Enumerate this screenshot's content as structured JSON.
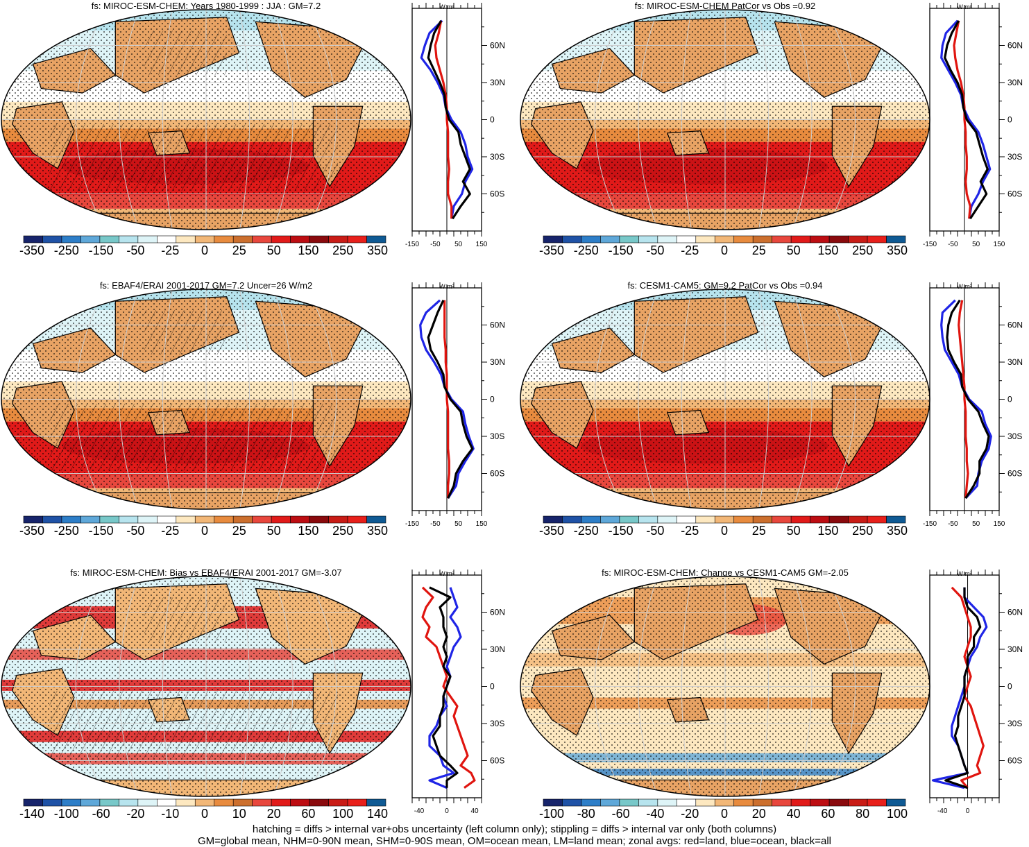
{
  "footnotes": [
    "hatching = diffs > internal var+obs uncertainty (left column only); stippling = diffs > internal var only (both columns)",
    "GM=global mean, NHM=0-90N mean, SHM=0-90S mean, OM=ocean mean, LM=land mean; zonal avgs: red=land, blue=ocean, black=all"
  ],
  "colors": {
    "land_line": "#e0150f",
    "ocean_line": "#1f25e6",
    "all_line": "#000000"
  },
  "profile_units": "W m²",
  "chart_data": [
    {
      "type": "heatmap",
      "title": "fs: MIROC-ESM-CHEM: Years 1980-1999 : JJA : GM=7.2",
      "map": "climatology",
      "colorbar": {
        "labels": [
          "-350",
          "-250",
          "-150",
          "-50",
          "-25",
          "0",
          "25",
          "50",
          "150",
          "250",
          "350"
        ]
      },
      "profile": {
        "x_ticks": [
          "-150",
          "-50",
          "50",
          "150"
        ],
        "xlim": [
          -150,
          150
        ],
        "y_ticks": [
          "60N",
          "30N",
          "0",
          "30S",
          "60S"
        ],
        "lat": [
          80,
          70,
          60,
          50,
          40,
          30,
          20,
          10,
          0,
          -10,
          -20,
          -30,
          -40,
          -50,
          -60,
          -70,
          -80
        ],
        "series": [
          {
            "name": "land",
            "values": [
              -25,
              -35,
              -50,
              -45,
              -30,
              -15,
              -5,
              0,
              0,
              5,
              5,
              5,
              10,
              5,
              5,
              20,
              20
            ]
          },
          {
            "name": "ocean",
            "values": [
              -20,
              -75,
              -95,
              -110,
              -70,
              -40,
              -15,
              -5,
              20,
              60,
              80,
              90,
              110,
              80,
              65,
              30,
              20
            ]
          },
          {
            "name": "all",
            "values": [
              -25,
              -55,
              -70,
              -80,
              -55,
              -30,
              -10,
              -5,
              10,
              50,
              60,
              80,
              100,
              70,
              100,
              60,
              25
            ]
          }
        ]
      }
    },
    {
      "type": "heatmap",
      "title": "fs: MIROC-ESM-CHEM PatCor vs Obs =0.92",
      "map": "climatology",
      "colorbar": {
        "labels": [
          "-350",
          "-250",
          "-150",
          "-50",
          "-25",
          "0",
          "25",
          "50",
          "150",
          "250",
          "350"
        ]
      },
      "profile": {
        "x_ticks": [
          "-150",
          "-50",
          "50",
          "150"
        ],
        "xlim": [
          -150,
          150
        ],
        "y_ticks": [
          "60N",
          "30N",
          "0",
          "30S",
          "60S"
        ],
        "lat": [
          80,
          70,
          60,
          50,
          40,
          30,
          20,
          10,
          0,
          -10,
          -20,
          -30,
          -40,
          -50,
          -60,
          -70,
          -80
        ],
        "series": [
          {
            "name": "land",
            "values": [
              -25,
              -35,
              -45,
              -40,
              -30,
              -15,
              -5,
              0,
              0,
              5,
              5,
              10,
              10,
              5,
              10,
              25,
              20
            ]
          },
          {
            "name": "ocean",
            "values": [
              -30,
              -80,
              -95,
              -100,
              -70,
              -40,
              -15,
              -5,
              20,
              60,
              80,
              95,
              110,
              80,
              60,
              30,
              20
            ]
          },
          {
            "name": "all",
            "values": [
              -25,
              -55,
              -75,
              -85,
              -60,
              -30,
              -10,
              -5,
              10,
              50,
              65,
              80,
              100,
              70,
              95,
              60,
              25
            ]
          }
        ]
      }
    },
    {
      "type": "heatmap",
      "title": "fs: EBAF4/ERAI 2001-2017 GM=7.2 Uncer=26 W/m2",
      "map": "climatology",
      "colorbar": {
        "labels": [
          "-350",
          "-250",
          "-150",
          "-50",
          "-25",
          "0",
          "25",
          "50",
          "150",
          "250",
          "350"
        ]
      },
      "profile": {
        "x_ticks": [
          "-150",
          "-50",
          "50",
          "150"
        ],
        "xlim": [
          -150,
          150
        ],
        "y_ticks": [
          "60N",
          "30N",
          "0",
          "30S",
          "60S"
        ],
        "lat": [
          80,
          70,
          60,
          50,
          40,
          30,
          20,
          10,
          0,
          -10,
          -20,
          -30,
          -40,
          -50,
          -60,
          -70,
          -80
        ],
        "series": [
          {
            "name": "land",
            "values": [
              -10,
              -10,
              -10,
              -10,
              -5,
              -5,
              0,
              0,
              0,
              5,
              5,
              5,
              5,
              10,
              10,
              5,
              5
            ]
          },
          {
            "name": "ocean",
            "values": [
              -30,
              -90,
              -115,
              -110,
              -90,
              -55,
              -25,
              -10,
              20,
              70,
              80,
              95,
              115,
              80,
              50,
              40,
              5
            ]
          },
          {
            "name": "all",
            "values": [
              -15,
              -40,
              -60,
              -80,
              -70,
              -40,
              -15,
              -10,
              15,
              60,
              70,
              85,
              110,
              70,
              40,
              30,
              5
            ]
          }
        ]
      }
    },
    {
      "type": "heatmap",
      "title": "fs: CESM1-CAM5: GM=9.2 PatCor vs Obs =0.94",
      "map": "climatology",
      "colorbar": {
        "labels": [
          "-350",
          "-250",
          "-150",
          "-50",
          "-25",
          "0",
          "25",
          "50",
          "150",
          "250",
          "350"
        ]
      },
      "profile": {
        "x_ticks": [
          "-150",
          "-50",
          "50",
          "150"
        ],
        "xlim": [
          -150,
          150
        ],
        "y_ticks": [
          "60N",
          "30N",
          "0",
          "30S",
          "60S"
        ],
        "lat": [
          80,
          70,
          60,
          50,
          40,
          30,
          20,
          10,
          0,
          -10,
          -20,
          -30,
          -40,
          -50,
          -60,
          -70,
          -80
        ],
        "series": [
          {
            "name": "land",
            "values": [
              -10,
              -20,
              -25,
              -20,
              -15,
              -10,
              -5,
              0,
              0,
              5,
              5,
              5,
              10,
              10,
              15,
              10,
              5
            ]
          },
          {
            "name": "ocean",
            "values": [
              -40,
              -95,
              -100,
              -95,
              -85,
              -55,
              -25,
              -10,
              20,
              75,
              90,
              115,
              105,
              75,
              60,
              55,
              5
            ]
          },
          {
            "name": "all",
            "values": [
              -20,
              -55,
              -70,
              -75,
              -70,
              -45,
              -15,
              -10,
              15,
              60,
              80,
              105,
              95,
              65,
              65,
              40,
              5
            ]
          }
        ]
      }
    },
    {
      "type": "heatmap",
      "title": "fs: MIROC-ESM-CHEM: Bias vs EBAF4/ERAI 2001-2017 GM=-3.07",
      "map": "bias",
      "colorbar": {
        "labels": [
          "-140",
          "-100",
          "-60",
          "-20",
          "-10",
          "0",
          "10",
          "20",
          "60",
          "100",
          "140"
        ]
      },
      "profile": {
        "x_ticks": [
          "-40",
          "0",
          "40"
        ],
        "xlim": [
          -50,
          50
        ],
        "y_ticks": [
          "60N",
          "30N",
          "0",
          "30S",
          "60S"
        ],
        "lat": [
          80,
          72,
          64,
          56,
          48,
          40,
          32,
          24,
          16,
          8,
          0,
          -8,
          -16,
          -24,
          -32,
          -40,
          -48,
          -56,
          -64,
          -70,
          -76,
          -82
        ],
        "series": [
          {
            "name": "land",
            "values": [
              -35,
              -20,
              -30,
              -35,
              -25,
              -30,
              -15,
              -10,
              -5,
              0,
              -5,
              5,
              15,
              10,
              15,
              20,
              25,
              30,
              20,
              35,
              40,
              25
            ]
          },
          {
            "name": "ocean",
            "values": [
              5,
              10,
              15,
              5,
              15,
              20,
              10,
              5,
              0,
              5,
              0,
              -5,
              0,
              -10,
              -15,
              -25,
              -25,
              -10,
              -5,
              10,
              -25,
              0
            ]
          },
          {
            "name": "all",
            "values": [
              -25,
              5,
              -10,
              -5,
              -5,
              0,
              -5,
              0,
              -5,
              5,
              0,
              -5,
              -5,
              -10,
              -10,
              -20,
              -15,
              -10,
              5,
              15,
              0,
              0
            ]
          }
        ]
      }
    },
    {
      "type": "heatmap",
      "title": "fs: MIROC-ESM-CHEM: Change vs CESM1-CAM5 GM=-2.05",
      "map": "change",
      "colorbar": {
        "labels": [
          "-100",
          "-80",
          "-60",
          "-40",
          "-20",
          "0",
          "20",
          "40",
          "60",
          "80",
          "100"
        ]
      },
      "profile": {
        "x_ticks": [
          "-40",
          "0"
        ],
        "xlim": [
          -60,
          50
        ],
        "y_ticks": [
          "60N",
          "30N",
          "0",
          "30S",
          "60S"
        ],
        "lat": [
          80,
          72,
          64,
          56,
          48,
          40,
          32,
          24,
          16,
          8,
          0,
          -8,
          -16,
          -24,
          -32,
          -40,
          -48,
          -56,
          -64,
          -70,
          -76,
          -82
        ],
        "series": [
          {
            "name": "land",
            "values": [
              -25,
              -10,
              -5,
              0,
              5,
              5,
              0,
              -5,
              0,
              5,
              0,
              -5,
              5,
              10,
              15,
              20,
              25,
              20,
              15,
              20,
              -10,
              0
            ]
          },
          {
            "name": "ocean",
            "values": [
              -5,
              -5,
              10,
              25,
              30,
              20,
              15,
              5,
              0,
              -5,
              -5,
              -10,
              -15,
              -20,
              -25,
              -25,
              -15,
              -10,
              -5,
              0,
              -55,
              -5
            ]
          },
          {
            "name": "all",
            "values": [
              -5,
              -5,
              0,
              15,
              20,
              10,
              10,
              0,
              0,
              -5,
              -5,
              -5,
              -10,
              -15,
              -15,
              -20,
              -15,
              -10,
              -5,
              0,
              -35,
              0
            ]
          }
        ]
      }
    }
  ]
}
